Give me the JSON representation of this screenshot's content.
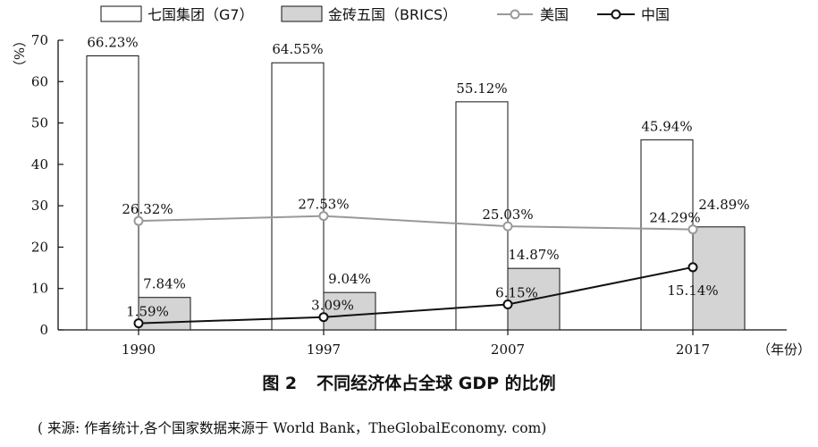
{
  "chart_data": {
    "type": "bar",
    "categories": [
      "1990",
      "1997",
      "2007",
      "2017"
    ],
    "series": [
      {
        "name": "七国集团（G7）",
        "kind": "bar",
        "values": [
          66.23,
          64.55,
          55.12,
          45.94
        ],
        "labels": [
          "66.23%",
          "64.55%",
          "55.12%",
          "45.94%"
        ],
        "fill": "#ffffff"
      },
      {
        "name": "金砖五国（BRICS）",
        "kind": "bar",
        "values": [
          7.84,
          9.04,
          14.87,
          24.89
        ],
        "labels": [
          "7.84%",
          "9.04%",
          "14.87%",
          "24.89%"
        ],
        "fill": "#d4d4d4"
      },
      {
        "name": "美国",
        "kind": "line",
        "values": [
          26.32,
          27.53,
          25.03,
          24.29
        ],
        "labels": [
          "26.32%",
          "27.53%",
          "25.03%",
          "24.29%"
        ],
        "color": "#999999"
      },
      {
        "name": "中国",
        "kind": "line",
        "values": [
          1.59,
          3.09,
          6.15,
          15.14
        ],
        "labels": [
          "1.59%",
          "3.09%",
          "6.15%",
          "15.14%"
        ],
        "color": "#111111"
      }
    ],
    "ylabel": "（%）",
    "xlabel": "（年份）",
    "ylim": [
      0,
      70
    ],
    "yticks": [
      "0",
      "10",
      "20",
      "30",
      "40",
      "50",
      "60",
      "70"
    ],
    "legend_position": "top",
    "grid": false
  },
  "caption": {
    "figure_no": "图 2",
    "title": "不同经济体占全球 GDP 的比例"
  },
  "source_note": "( 来源: 作者统计,各个国家数据来源于 World Bank，TheGlobalEconomy. com)"
}
